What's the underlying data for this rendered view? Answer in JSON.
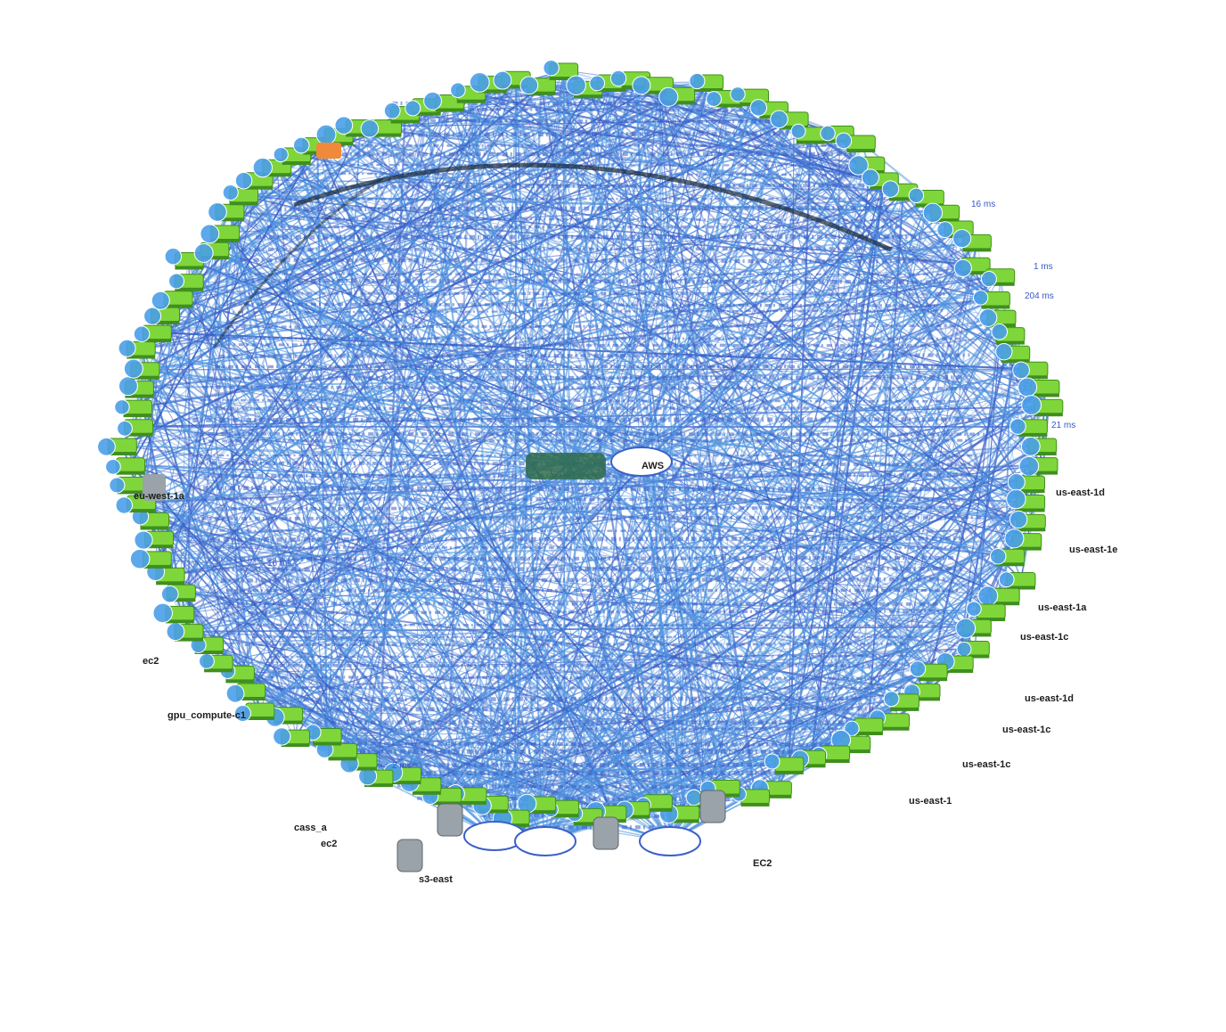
{
  "diagram": {
    "colors": {
      "edge": "#4f93e0",
      "edge_dark": "#3a60c8",
      "node_green": "#7fd63a",
      "node_green_dark": "#3f8f1f",
      "node_blue": "#4a9ee8",
      "node_orange": "#f08a3a",
      "server_gray": "#9aa2aa",
      "label_dark": "#1d1d1d",
      "label_blue": "#3a57c8"
    },
    "center_label": "AWS",
    "hub_labels": [
      "AWS",
      "AWS",
      "AWS"
    ],
    "left_labels": [
      "eu-west-1a",
      "ec2",
      "gpu_compute-c1"
    ],
    "right_labels": [
      "us-east-1d",
      "us-east-1e",
      "us-east-1a",
      "us-east-1c",
      "us-east-1d",
      "us-east-1c",
      "us-east-1c",
      "us-east-1"
    ],
    "bottom_labels": [
      "cass_a",
      "ec2",
      "EC2",
      "s3-east"
    ],
    "edge_labels": [
      "16 ms",
      "1 ms",
      "204 ms",
      "21 ms",
      "2 ms",
      "16 ms"
    ]
  }
}
